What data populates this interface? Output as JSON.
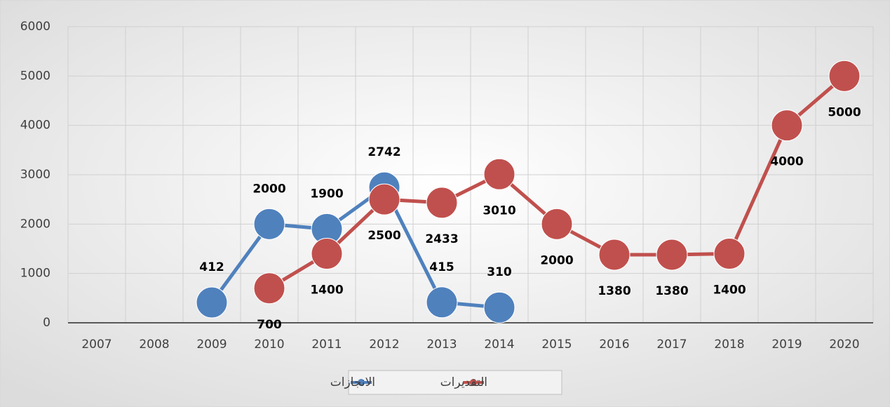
{
  "chart_data": {
    "type": "line",
    "categories": [
      "2007",
      "2008",
      "2009",
      "2010",
      "2011",
      "2012",
      "2013",
      "2014",
      "2015",
      "2016",
      "2017",
      "2018",
      "2019",
      "2020"
    ],
    "series": [
      {
        "name": "الانجازات",
        "color": "#4f81bd",
        "values": [
          null,
          null,
          412,
          2000,
          1900,
          2742,
          415,
          310,
          null,
          null,
          null,
          null,
          null,
          null
        ]
      },
      {
        "name": "التقديرات",
        "color": "#c0504d",
        "values": [
          null,
          null,
          null,
          700,
          1400,
          2500,
          2433,
          3010,
          2000,
          1380,
          1380,
          1400,
          4000,
          5000
        ]
      }
    ],
    "ylim": [
      0,
      6000
    ],
    "yticks": [
      0,
      1000,
      2000,
      3000,
      4000,
      5000,
      6000
    ],
    "grid": true,
    "legend": "bottom"
  }
}
